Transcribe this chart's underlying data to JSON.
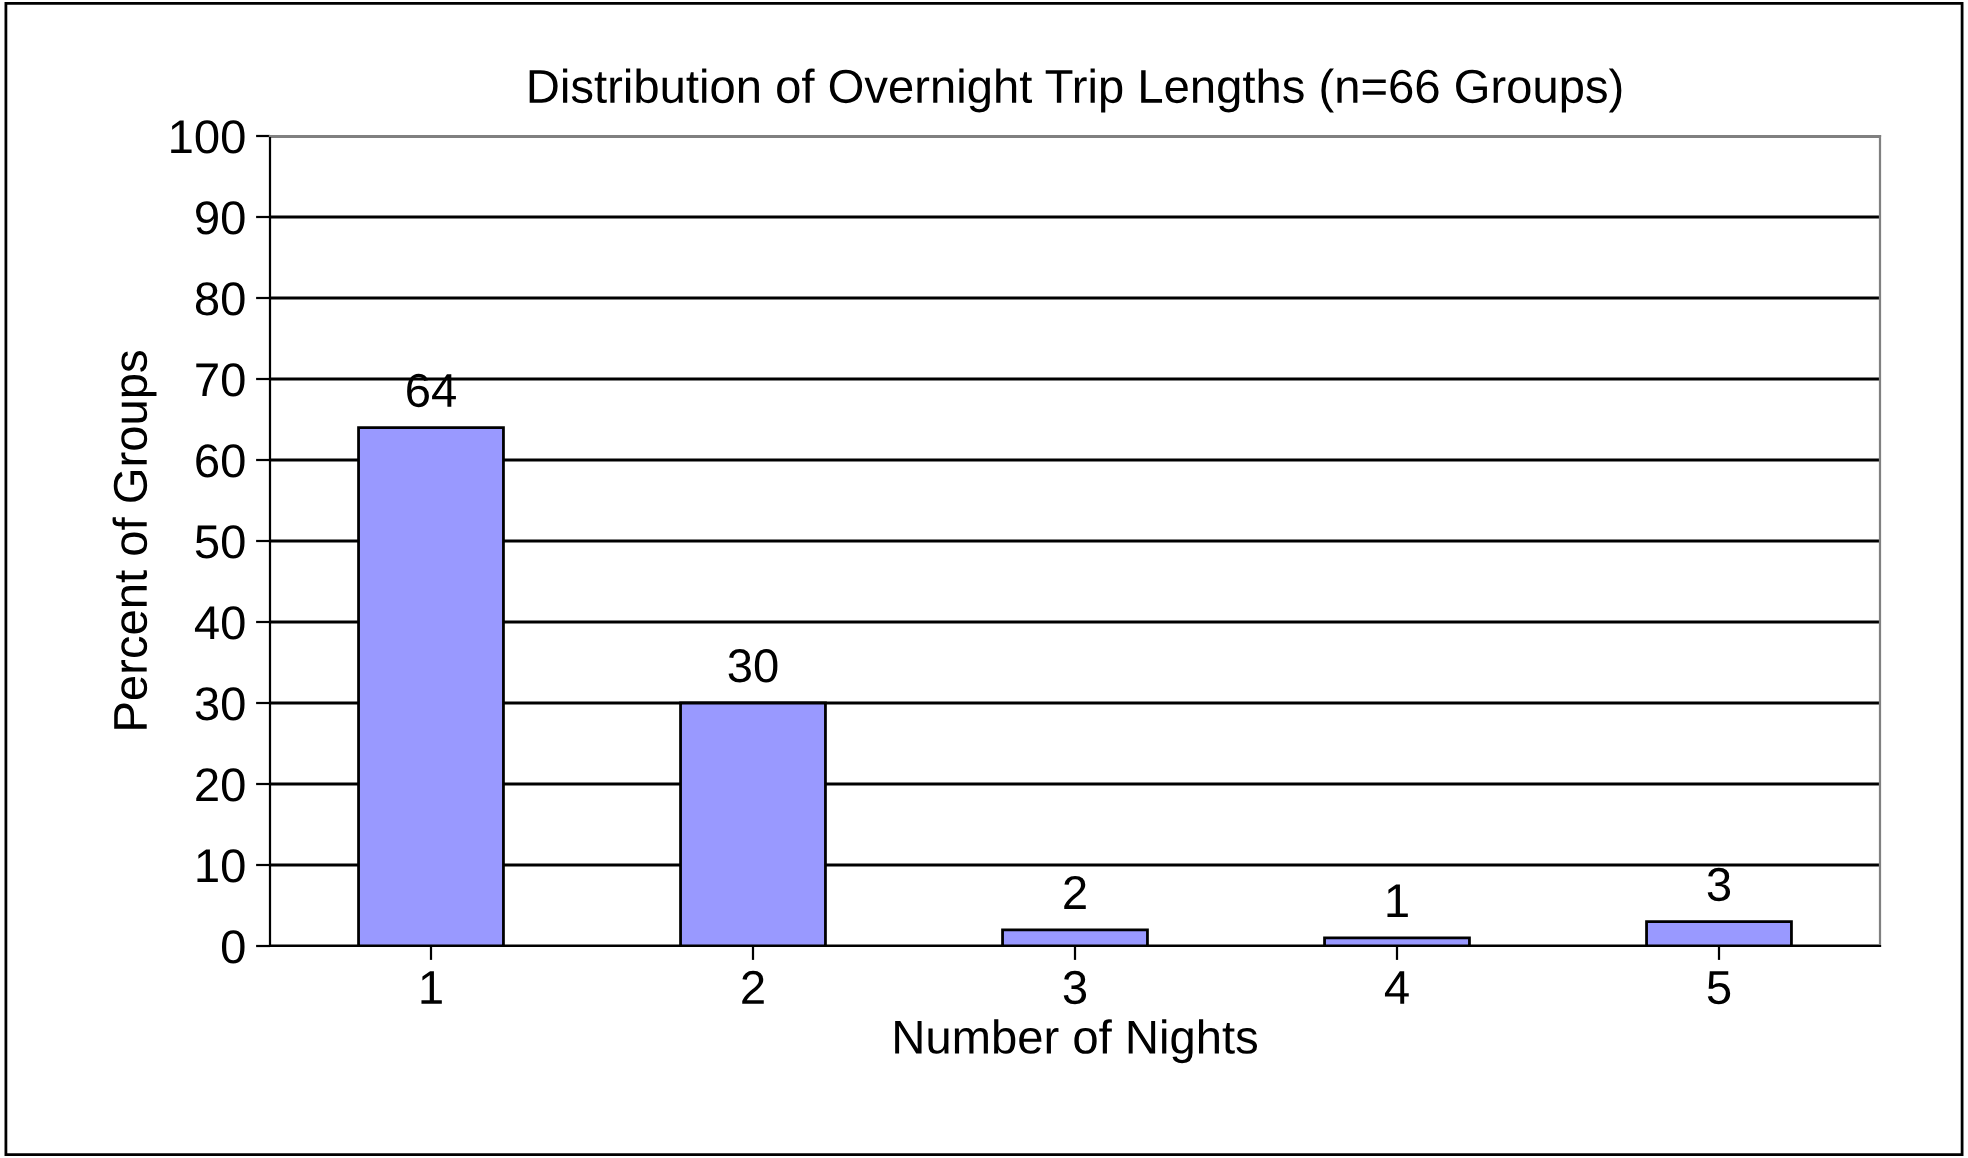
{
  "chart_data": {
    "type": "bar",
    "title": "Distribution of Overnight Trip Lengths (n=66 Groups)",
    "xlabel": "Number of Nights",
    "ylabel": "Percent of Groups",
    "categories": [
      "1",
      "2",
      "3",
      "4",
      "5"
    ],
    "values": [
      64,
      30,
      2,
      1,
      3
    ],
    "color": "#9999ff",
    "ylim": [
      0,
      100
    ],
    "yticks": [
      0,
      10,
      20,
      30,
      40,
      50,
      60,
      70,
      80,
      90,
      100
    ],
    "grid": "y",
    "data_labels": true,
    "legend": false
  }
}
